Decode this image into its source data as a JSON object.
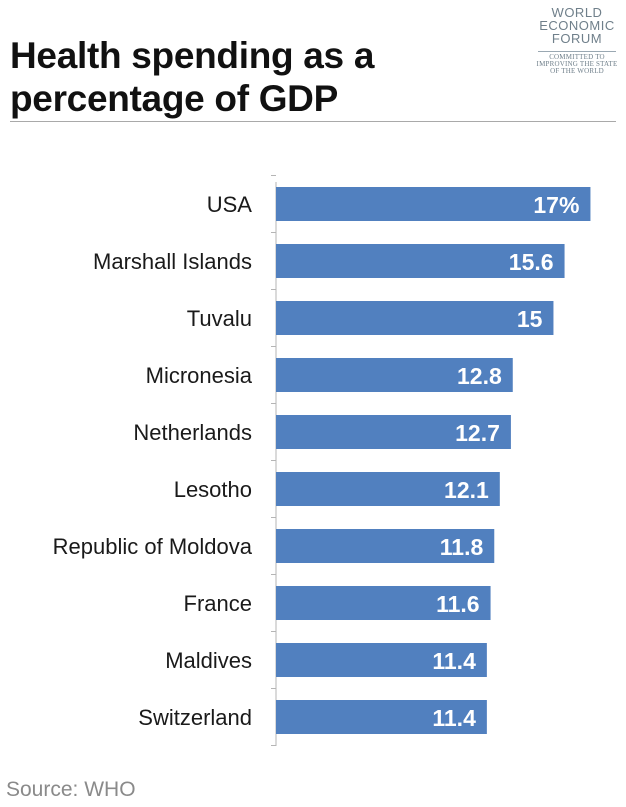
{
  "header": {
    "title": "Health spending as a percentage of GDP"
  },
  "logo": {
    "line1": "WORLD",
    "line2": "ECONOMIC",
    "line3": "FORUM",
    "tagline1": "COMMITTED TO",
    "tagline2": "IMPROVING THE STATE",
    "tagline3": "OF THE WORLD"
  },
  "source": "Source: WHO",
  "colors": {
    "bar": "#5180bf",
    "bar_label": "#ffffff",
    "axis": "#b5b5b5",
    "category_text": "#1a1a1a"
  },
  "chart_data": {
    "type": "bar",
    "orientation": "horizontal",
    "title": "Health spending as a percentage of GDP",
    "xlabel": "",
    "ylabel": "",
    "grid": false,
    "xlim": [
      0,
      17.3
    ],
    "categories": [
      "USA",
      "Marshall Islands",
      "Tuvalu",
      "Micronesia",
      "Netherlands",
      "Lesotho",
      "Republic of Moldova",
      "France",
      "Maldives",
      "Switzerland"
    ],
    "values": [
      17,
      15.6,
      15,
      12.8,
      12.7,
      12.1,
      11.8,
      11.6,
      11.4,
      11.4
    ],
    "value_labels": [
      "17%",
      "15.6",
      "15",
      "12.8",
      "12.7",
      "12.1",
      "11.8",
      "11.6",
      "11.4",
      "11.4"
    ]
  }
}
